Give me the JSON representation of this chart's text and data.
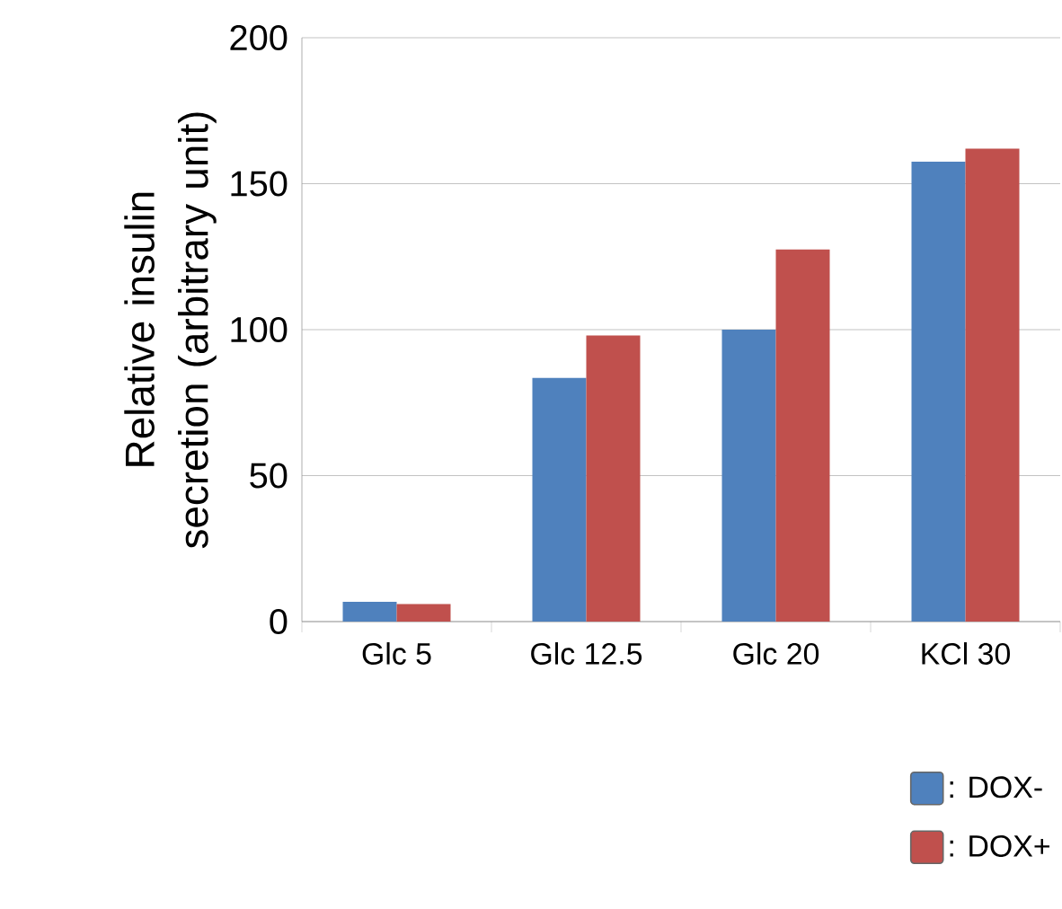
{
  "chart_data": {
    "type": "bar",
    "ylabel": "Relative insulin secretion (arbitrary unit)",
    "categories": [
      "Glc 5",
      "Glc 12.5",
      "Glc 20",
      "KCl 30"
    ],
    "series": [
      {
        "name": ": DOX-",
        "color": "#4f81bd",
        "values": [
          6.8,
          83.5,
          100,
          157.5
        ]
      },
      {
        "name": ": DOX+",
        "color": "#c0504d",
        "values": [
          6,
          98,
          127.5,
          162
        ]
      }
    ],
    "ylim": [
      0,
      200
    ],
    "yticks": [
      0,
      50,
      100,
      150,
      200
    ],
    "grid": "y",
    "legend": "bottom right"
  }
}
